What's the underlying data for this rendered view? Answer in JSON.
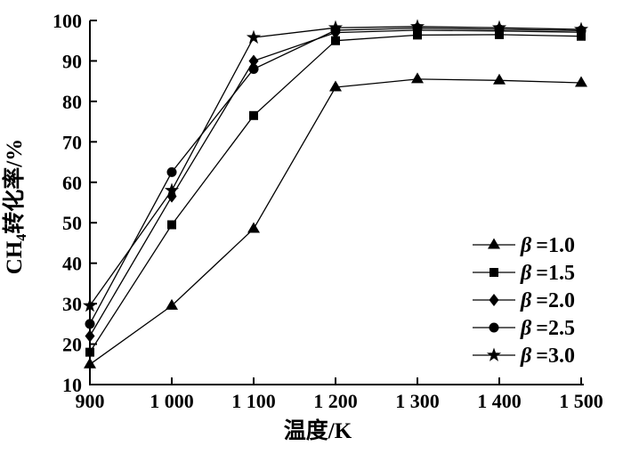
{
  "figure": {
    "background": "#ffffff",
    "ink_color": "#000000"
  },
  "chart_data": {
    "type": "line",
    "title": "",
    "xlabel": "温度/K",
    "ylabel": "CH4转化率/%",
    "ylabel_parts": {
      "prefix": "CH",
      "sub": "4",
      "suffix": "转化率/%"
    },
    "xlim": [
      900,
      1500
    ],
    "ylim": [
      10,
      100
    ],
    "x": [
      900,
      1000,
      1100,
      1200,
      1300,
      1400,
      1500
    ],
    "x_tick_labels": [
      "900",
      "1 000",
      "1 100",
      "1 200",
      "1 300",
      "1 400",
      "1 500"
    ],
    "y_ticks": [
      10,
      20,
      30,
      40,
      50,
      60,
      70,
      80,
      90,
      100
    ],
    "y_tick_labels": [
      "10",
      "20",
      "30",
      "40",
      "50",
      "60",
      "70",
      "80",
      "90",
      "100"
    ],
    "grid": false,
    "legend_position": "inside-lower-right",
    "series": [
      {
        "name": "β =1.0",
        "marker": "triangle",
        "color": "#000000",
        "values": [
          15,
          29.5,
          48.5,
          83.5,
          85.5,
          85.2,
          84.6
        ]
      },
      {
        "name": "β =1.5",
        "marker": "square",
        "color": "#000000",
        "values": [
          18,
          49.5,
          76.5,
          95,
          96.4,
          96.5,
          96.1
        ]
      },
      {
        "name": "β =2.0",
        "marker": "diamond",
        "color": "#000000",
        "values": [
          22,
          56.5,
          90,
          97,
          97.6,
          97.4,
          97.1
        ]
      },
      {
        "name": "β =2.5",
        "marker": "circle",
        "color": "#000000",
        "values": [
          25,
          62.5,
          88,
          97.6,
          98.1,
          97.8,
          97.5
        ]
      },
      {
        "name": "β =3.0",
        "marker": "star",
        "color": "#000000",
        "values": [
          29.5,
          58,
          95.8,
          98.2,
          98.5,
          98.2,
          97.8
        ]
      }
    ]
  }
}
